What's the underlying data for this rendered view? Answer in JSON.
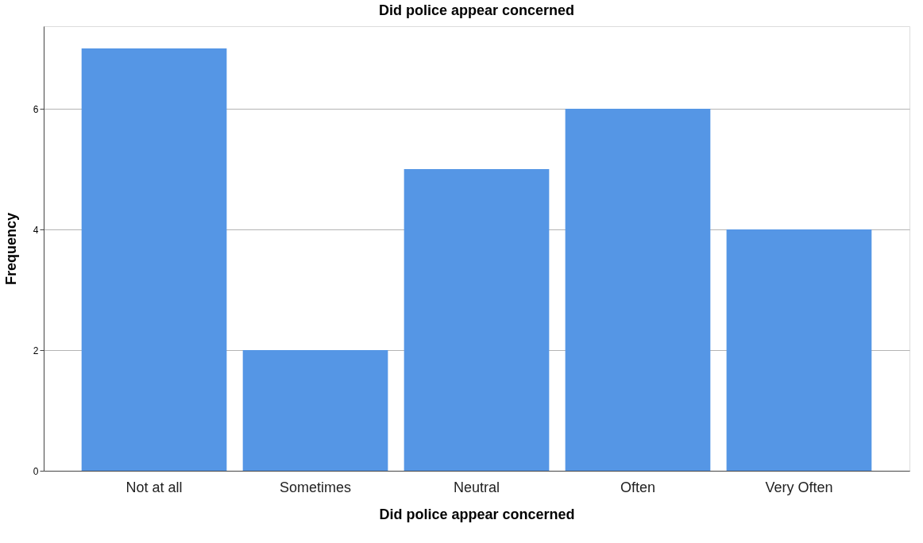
{
  "chart_data": {
    "type": "bar",
    "title": "Did police appear concerned",
    "xlabel": "Did police appear concerned",
    "ylabel": "Frequency",
    "categories": [
      "Not at all",
      "Sometimes",
      "Neutral",
      "Often",
      "Very Often"
    ],
    "values": [
      7,
      2,
      5,
      6,
      4
    ],
    "color": "#5596e5",
    "ylim": [
      0,
      7.37
    ],
    "yticks": [
      0,
      2,
      4,
      6
    ],
    "grid": "y"
  }
}
